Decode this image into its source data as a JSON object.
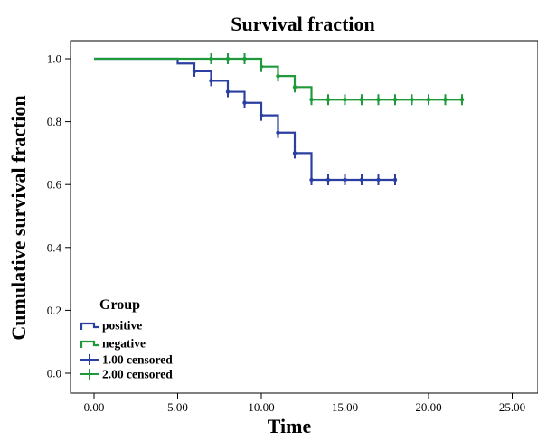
{
  "chart_data": {
    "type": "line",
    "title": "Survival fraction",
    "xlabel": "Time",
    "ylabel": "Cumulative survival fraction",
    "xlim": [
      0,
      25
    ],
    "ylim": [
      0,
      1
    ],
    "xticks": [
      "0.00",
      "5.00",
      "10.00",
      "15.00",
      "20.00",
      "25.00"
    ],
    "yticks": [
      "0.0",
      "0.2",
      "0.4",
      "0.6",
      "0.8",
      "1.0"
    ],
    "xtick_values": [
      0,
      5,
      10,
      15,
      20,
      25
    ],
    "ytick_values": [
      0,
      0.2,
      0.4,
      0.6,
      0.8,
      1.0
    ],
    "grid": false,
    "legend": {
      "title": "Group",
      "position": "bottom-left",
      "entries": [
        "positive",
        "negative",
        "1.00 censored",
        "2.00 censored"
      ]
    },
    "series": [
      {
        "name": "positive",
        "color": "#2b3fa0",
        "step_x": [
          0,
          5,
          6,
          7,
          8,
          9,
          10,
          11,
          12,
          13,
          18
        ],
        "step_y": [
          1.0,
          0.985,
          0.96,
          0.93,
          0.895,
          0.86,
          0.82,
          0.765,
          0.7,
          0.615,
          0.615
        ],
        "censored_label": "1.00 censored",
        "censored_x": [
          6,
          7,
          8,
          9,
          10,
          11,
          12,
          13,
          14,
          15,
          16,
          17,
          18
        ],
        "censored_y": [
          0.96,
          0.93,
          0.895,
          0.86,
          0.82,
          0.765,
          0.7,
          0.615,
          0.615,
          0.615,
          0.615,
          0.615,
          0.615
        ]
      },
      {
        "name": "negative",
        "color": "#1f9a3a",
        "step_x": [
          0,
          10,
          11,
          12,
          13,
          22
        ],
        "step_y": [
          1.0,
          0.975,
          0.945,
          0.91,
          0.87,
          0.87
        ],
        "censored_label": "2.00 censored",
        "censored_x": [
          7,
          8,
          9,
          10,
          11,
          12,
          13,
          14,
          15,
          16,
          17,
          18,
          19,
          20,
          21,
          22
        ],
        "censored_y": [
          1.0,
          1.0,
          1.0,
          0.975,
          0.945,
          0.91,
          0.87,
          0.87,
          0.87,
          0.87,
          0.87,
          0.87,
          0.87,
          0.87,
          0.87,
          0.87
        ]
      }
    ]
  }
}
